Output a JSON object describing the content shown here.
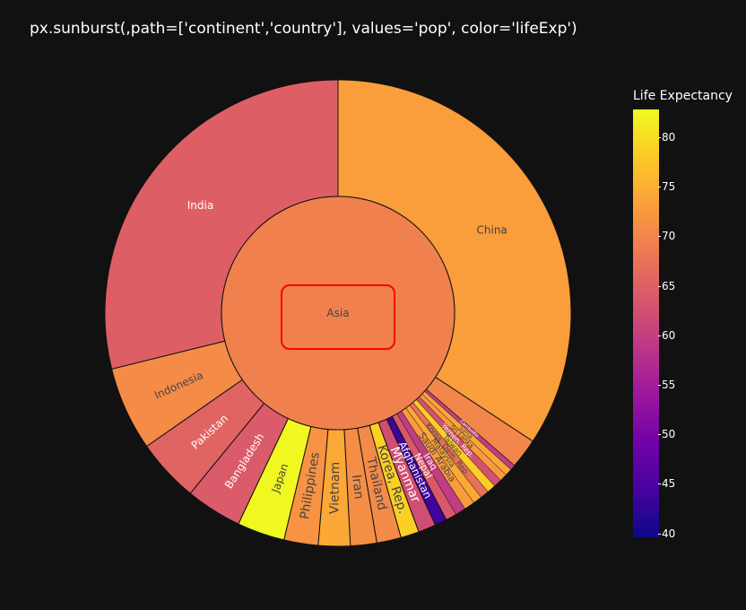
{
  "title": "px.sunburst(,path=['continent','country'], values='pop', color='lifeExp')",
  "colors": {
    "background": "#111111",
    "highlight_box": "#ff0000",
    "colorscale": [
      "#0d0887",
      "#46039f",
      "#7201a8",
      "#9c179e",
      "#bd3786",
      "#d8576b",
      "#ed7953",
      "#fb9f3a",
      "#fdca26",
      "#f0f921"
    ]
  },
  "chart_data": {
    "type": "sunburst",
    "path": [
      "continent",
      "country"
    ],
    "values_field": "pop",
    "color_field": "lifeExp",
    "center": {
      "label": "Asia",
      "lifeExp": 69.4
    },
    "countries": [
      {
        "label": "China",
        "pop": 1318,
        "lifeExp": 73.0
      },
      {
        "label": "",
        "pop": 80,
        "lifeExp": 70
      },
      {
        "label": "Cambodia",
        "pop": 14,
        "lifeExp": 59.7
      },
      {
        "label": "Syria",
        "pop": 19,
        "lifeExp": 74.1
      },
      {
        "label": "Sri Lanka",
        "pop": 20,
        "lifeExp": 72.4
      },
      {
        "label": "Yemen, Rep.",
        "pop": 22,
        "lifeExp": 62.7
      },
      {
        "label": "Taiwan",
        "pop": 23,
        "lifeExp": 78.4
      },
      {
        "label": "Korea, Dem. Rep.",
        "pop": 23,
        "lifeExp": 67.3
      },
      {
        "label": "Malaysia",
        "pop": 24,
        "lifeExp": 74.2
      },
      {
        "label": "Saudi Arabia",
        "pop": 28,
        "lifeExp": 72.8
      },
      {
        "label": "Iraq",
        "pop": 28,
        "lifeExp": 59.5
      },
      {
        "label": "Nepal",
        "pop": 29,
        "lifeExp": 63.8
      },
      {
        "label": "Afghanistan",
        "pop": 32,
        "lifeExp": 43.8
      },
      {
        "label": "Myanmar",
        "pop": 47,
        "lifeExp": 62.1
      },
      {
        "label": "Korea, Rep.",
        "pop": 49,
        "lifeExp": 78.6
      },
      {
        "label": "Thailand",
        "pop": 65,
        "lifeExp": 70.6
      },
      {
        "label": "Iran",
        "pop": 70,
        "lifeExp": 71.0
      },
      {
        "label": "Vietnam",
        "pop": 85,
        "lifeExp": 74.2
      },
      {
        "label": "Philippines",
        "pop": 91,
        "lifeExp": 71.7
      },
      {
        "label": "Japan",
        "pop": 127,
        "lifeExp": 82.6
      },
      {
        "label": "Bangladesh",
        "pop": 150,
        "lifeExp": 64.1
      },
      {
        "label": "Pakistan",
        "pop": 169,
        "lifeExp": 65.5
      },
      {
        "label": "Indonesia",
        "pop": 224,
        "lifeExp": 70.7
      },
      {
        "label": "India",
        "pop": 1110,
        "lifeExp": 64.7
      }
    ],
    "colorbar": {
      "title": "Life Expectancy",
      "min": 39.6,
      "max": 82.8,
      "ticks": [
        "40",
        "45",
        "50",
        "55",
        "60",
        "65",
        "70",
        "75",
        "80"
      ]
    }
  }
}
